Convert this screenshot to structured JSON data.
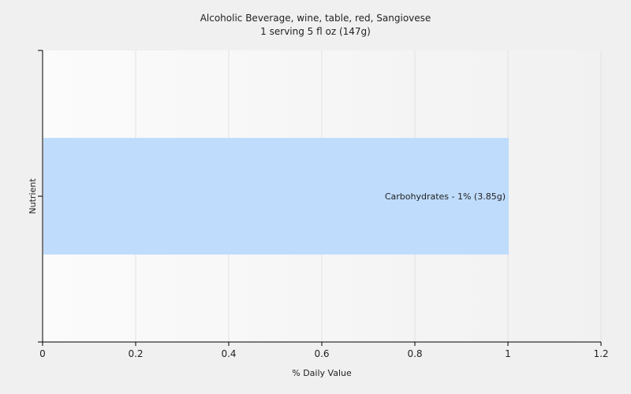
{
  "chart_data": {
    "type": "bar",
    "orientation": "horizontal",
    "title": "Alcoholic Beverage, wine, table, red, Sangiovese",
    "subtitle": "1 serving 5 fl oz (147g)",
    "xlabel": "% Daily Value",
    "ylabel": "Nutrient",
    "xlim": [
      0,
      1.2
    ],
    "xticks": [
      "0",
      "0.2",
      "0.4",
      "0.6",
      "0.8",
      "1",
      "1.2"
    ],
    "grid": true,
    "categories": [
      "Carbohydrates"
    ],
    "values": [
      1
    ],
    "data_labels": [
      "Carbohydrates - 1% (3.85g)"
    ],
    "bar_color": "#bfdcfd"
  }
}
